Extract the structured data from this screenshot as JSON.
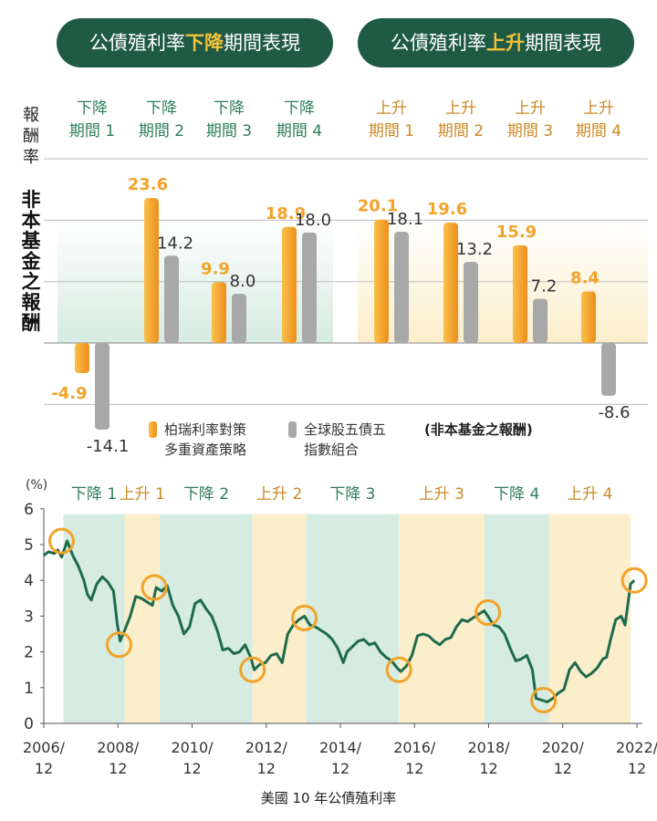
{
  "header": {
    "fall_pill": {
      "prefix": "公債殖利率",
      "highlight": "下降",
      "suffix": "期間表現"
    },
    "rise_pill": {
      "prefix": "公債殖利率",
      "highlight": "上升",
      "suffix": "期間表現"
    },
    "y_title_small": [
      "報",
      "酬",
      "率"
    ],
    "y_title_big": [
      "非",
      "本",
      "基",
      "金",
      "之",
      "報",
      "酬"
    ]
  },
  "colors": {
    "dark_green": "#1f5a44",
    "fall_text": "#2e7d5b",
    "rise_text": "#c98a26",
    "orange": "#f2a32a",
    "gray": "#a8a8a8",
    "fall_bg": "#d6ebe1",
    "rise_bg": "#fbeecb",
    "line": "#1e6b4b"
  },
  "chart_data": [
    {
      "type": "bar",
      "title": "公債殖利率下降/上升期間表現",
      "ylabel": "報酬率 非本基金之報酬",
      "categories": [
        {
          "top": "下降",
          "bottom": "期間 1",
          "group": "fall"
        },
        {
          "top": "下降",
          "bottom": "期間 2",
          "group": "fall"
        },
        {
          "top": "下降",
          "bottom": "期間 3",
          "group": "fall"
        },
        {
          "top": "下降",
          "bottom": "期間 4",
          "group": "fall"
        },
        {
          "top": "上升",
          "bottom": "期間 1",
          "group": "rise"
        },
        {
          "top": "上升",
          "bottom": "期間 2",
          "group": "rise"
        },
        {
          "top": "上升",
          "bottom": "期間 3",
          "group": "rise"
        },
        {
          "top": "上升",
          "bottom": "期間 4",
          "group": "rise"
        }
      ],
      "series": [
        {
          "name": "柏瑞利率對策多重資產策略",
          "name_lines": [
            "柏瑞利率對策",
            "多重資產策略"
          ],
          "values": [
            -4.9,
            23.6,
            9.9,
            18.9,
            20.1,
            19.6,
            15.9,
            8.4
          ],
          "labels": [
            "-4.9",
            "23.6",
            "9.9",
            "18.9",
            "20.1",
            "19.6",
            "15.9",
            "8.4"
          ]
        },
        {
          "name": "全球股五債五指數組合",
          "name_lines": [
            "全球股五債五",
            "指數組合"
          ],
          "values": [
            -14.1,
            14.2,
            8.0,
            18.0,
            18.1,
            13.2,
            7.2,
            -8.6
          ],
          "labels": [
            "-14.1",
            "14.2",
            "8.0",
            "18.0",
            "18.1",
            "13.2",
            "7.2",
            "-8.6"
          ]
        }
      ],
      "note": "(非本基金之報酬)",
      "ylim": [
        -16,
        30
      ]
    },
    {
      "type": "line",
      "ylabel": "(%)",
      "xlabel": "美國 10 年公債殖利率",
      "ylim": [
        0,
        6
      ],
      "xlim": [
        2006.92,
        2022.92
      ],
      "yticks": [
        "0",
        "1",
        "2",
        "3",
        "4",
        "5",
        "6"
      ],
      "xticks": [
        {
          "x": 2006.92,
          "top": "2006/",
          "bottom": "12"
        },
        {
          "x": 2008.92,
          "top": "2008/",
          "bottom": "12"
        },
        {
          "x": 2010.92,
          "top": "2010/",
          "bottom": "12"
        },
        {
          "x": 2012.92,
          "top": "2012/",
          "bottom": "12"
        },
        {
          "x": 2014.92,
          "top": "2014/",
          "bottom": "12"
        },
        {
          "x": 2016.92,
          "top": "2016/",
          "bottom": "12"
        },
        {
          "x": 2018.92,
          "top": "2018/",
          "bottom": "12"
        },
        {
          "x": 2020.92,
          "top": "2020/",
          "bottom": "12"
        },
        {
          "x": 2022.92,
          "top": "2022/",
          "bottom": "12"
        }
      ],
      "periods": [
        {
          "label": "下降 1",
          "start": 2007.45,
          "end": 2009.1,
          "group": "fall"
        },
        {
          "label": "上升 1",
          "start": 2009.1,
          "end": 2010.05,
          "group": "rise"
        },
        {
          "label": "下降 2",
          "start": 2010.05,
          "end": 2012.55,
          "group": "fall"
        },
        {
          "label": "上升 2",
          "start": 2012.55,
          "end": 2014.0,
          "group": "rise"
        },
        {
          "label": "下降 3",
          "start": 2014.0,
          "end": 2016.5,
          "group": "fall"
        },
        {
          "label": "上升 3",
          "start": 2016.5,
          "end": 2018.8,
          "group": "rise"
        },
        {
          "label": "下降 4",
          "start": 2018.8,
          "end": 2020.55,
          "group": "fall"
        },
        {
          "label": "上升 4",
          "start": 2020.55,
          "end": 2022.75,
          "group": "rise"
        }
      ],
      "turning_points": [
        {
          "x": 2007.4,
          "y": 5.1
        },
        {
          "x": 2008.95,
          "y": 2.2
        },
        {
          "x": 2009.9,
          "y": 3.8
        },
        {
          "x": 2012.55,
          "y": 1.5
        },
        {
          "x": 2013.95,
          "y": 2.95
        },
        {
          "x": 2016.5,
          "y": 1.5
        },
        {
          "x": 2018.9,
          "y": 3.1
        },
        {
          "x": 2020.4,
          "y": 0.65
        },
        {
          "x": 2022.85,
          "y": 4.0
        }
      ],
      "series": [
        {
          "name": "美國 10 年公債殖利率",
          "x": [
            2006.92,
            2007.05,
            2007.2,
            2007.3,
            2007.4,
            2007.55,
            2007.7,
            2007.85,
            2008.0,
            2008.1,
            2008.2,
            2008.35,
            2008.5,
            2008.65,
            2008.8,
            2008.9,
            2008.98,
            2009.1,
            2009.25,
            2009.4,
            2009.55,
            2009.7,
            2009.85,
            2009.95,
            2010.1,
            2010.25,
            2010.4,
            2010.55,
            2010.7,
            2010.85,
            2011.0,
            2011.15,
            2011.3,
            2011.45,
            2011.6,
            2011.75,
            2011.9,
            2012.05,
            2012.2,
            2012.35,
            2012.5,
            2012.6,
            2012.75,
            2012.9,
            2013.05,
            2013.2,
            2013.35,
            2013.5,
            2013.65,
            2013.8,
            2013.95,
            2014.1,
            2014.25,
            2014.4,
            2014.55,
            2014.7,
            2014.85,
            2015.0,
            2015.1,
            2015.25,
            2015.4,
            2015.55,
            2015.7,
            2015.85,
            2016.0,
            2016.15,
            2016.3,
            2016.45,
            2016.55,
            2016.7,
            2016.85,
            2017.0,
            2017.15,
            2017.3,
            2017.45,
            2017.6,
            2017.75,
            2017.9,
            2018.05,
            2018.2,
            2018.35,
            2018.5,
            2018.65,
            2018.8,
            2018.9,
            2019.05,
            2019.2,
            2019.35,
            2019.5,
            2019.65,
            2019.8,
            2019.95,
            2020.1,
            2020.2,
            2020.35,
            2020.5,
            2020.65,
            2020.8,
            2020.95,
            2021.1,
            2021.25,
            2021.4,
            2021.55,
            2021.7,
            2021.85,
            2022.0,
            2022.1,
            2022.2,
            2022.35,
            2022.5,
            2022.6,
            2022.75,
            2022.85
          ],
          "y": [
            4.7,
            4.8,
            4.75,
            4.85,
            4.65,
            5.1,
            4.7,
            4.4,
            4.0,
            3.6,
            3.45,
            3.9,
            4.1,
            3.95,
            3.7,
            2.8,
            2.3,
            2.6,
            3.0,
            3.55,
            3.5,
            3.4,
            3.3,
            3.8,
            3.7,
            3.85,
            3.3,
            3.0,
            2.5,
            2.7,
            3.35,
            3.45,
            3.2,
            3.0,
            2.6,
            2.05,
            2.1,
            1.95,
            2.0,
            2.2,
            1.85,
            1.5,
            1.65,
            1.7,
            1.9,
            1.95,
            1.7,
            2.5,
            2.75,
            2.9,
            3.0,
            2.75,
            2.7,
            2.6,
            2.5,
            2.35,
            2.1,
            1.7,
            2.0,
            2.15,
            2.3,
            2.35,
            2.2,
            2.25,
            2.0,
            1.85,
            1.75,
            1.55,
            1.45,
            1.6,
            1.9,
            2.45,
            2.5,
            2.45,
            2.3,
            2.2,
            2.35,
            2.4,
            2.7,
            2.9,
            2.85,
            2.95,
            3.05,
            3.15,
            3.0,
            2.75,
            2.7,
            2.5,
            2.1,
            1.75,
            1.8,
            1.9,
            1.5,
            0.7,
            0.65,
            0.6,
            0.7,
            0.85,
            0.95,
            1.5,
            1.7,
            1.45,
            1.3,
            1.4,
            1.55,
            1.8,
            1.85,
            2.3,
            2.9,
            3.0,
            2.75,
            3.9,
            4.0
          ]
        }
      ]
    }
  ]
}
